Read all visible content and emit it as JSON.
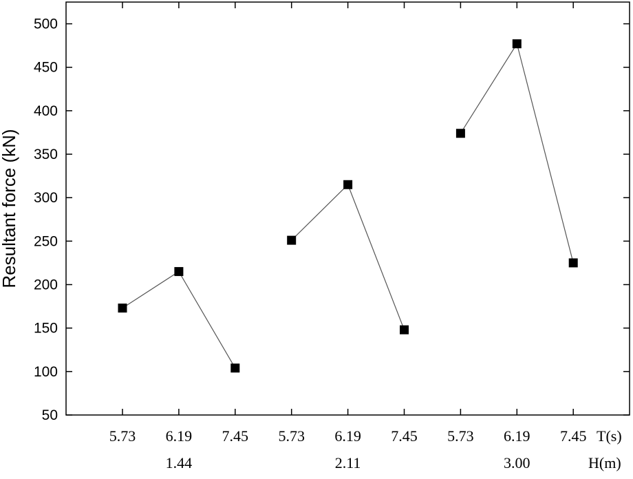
{
  "chart_data": {
    "type": "line",
    "title": "",
    "ylabel": "Resultant force (kN)",
    "ylim": [
      50,
      525
    ],
    "yticks": [
      50,
      100,
      150,
      200,
      250,
      300,
      350,
      400,
      450,
      500
    ],
    "x_axis_name": "T(s)",
    "group_axis_name": "H(m)",
    "categories": [
      "5.73",
      "6.19",
      "7.45",
      "5.73",
      "6.19",
      "7.45",
      "5.73",
      "6.19",
      "7.45"
    ],
    "groups": [
      {
        "label": "1.44",
        "T": [
          "5.73",
          "6.19",
          "7.45"
        ],
        "values": [
          173,
          215,
          104
        ]
      },
      {
        "label": "2.11",
        "T": [
          "5.73",
          "6.19",
          "7.45"
        ],
        "values": [
          251,
          315,
          148
        ]
      },
      {
        "label": "3.00",
        "T": [
          "5.73",
          "6.19",
          "7.45"
        ],
        "values": [
          374,
          477,
          225
        ]
      }
    ],
    "marker": "square",
    "marker_color": "#000000",
    "line_color": "#555555",
    "grid": false,
    "legend": "none"
  }
}
